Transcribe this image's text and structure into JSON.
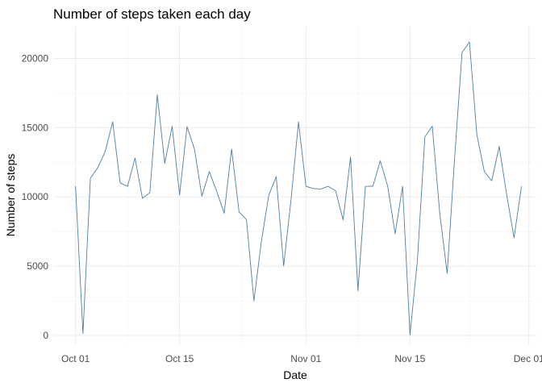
{
  "chart_data": {
    "type": "line",
    "title": "Number of steps taken each day",
    "xlabel": "Date",
    "ylabel": "Number of steps",
    "x_ticks": [
      {
        "date": "2012-10-01",
        "label": "Oct 01"
      },
      {
        "date": "2012-10-15",
        "label": "Oct 15"
      },
      {
        "date": "2012-11-01",
        "label": "Nov 01"
      },
      {
        "date": "2012-11-15",
        "label": "Nov 15"
      },
      {
        "date": "2012-12-01",
        "label": "Dec 01"
      }
    ],
    "y_ticks": [
      0,
      5000,
      10000,
      15000,
      20000
    ],
    "xlim": [
      "2012-09-28",
      "2012-12-02"
    ],
    "ylim": [
      -700,
      22300
    ],
    "grid": true,
    "line_color": "#4e7ea3",
    "series": [
      {
        "x": [
          "2012-10-01",
          "2012-10-02",
          "2012-10-03",
          "2012-10-04",
          "2012-10-05",
          "2012-10-06",
          "2012-10-07",
          "2012-10-08",
          "2012-10-09",
          "2012-10-10",
          "2012-10-11",
          "2012-10-12",
          "2012-10-13",
          "2012-10-14",
          "2012-10-15",
          "2012-10-16",
          "2012-10-17",
          "2012-10-18",
          "2012-10-19",
          "2012-10-20",
          "2012-10-21",
          "2012-10-22",
          "2012-10-23",
          "2012-10-24",
          "2012-10-25",
          "2012-10-26",
          "2012-10-27",
          "2012-10-28",
          "2012-10-29",
          "2012-10-30",
          "2012-10-31",
          "2012-11-01",
          "2012-11-02",
          "2012-11-03",
          "2012-11-04",
          "2012-11-05",
          "2012-11-06",
          "2012-11-07",
          "2012-11-08",
          "2012-11-09",
          "2012-11-10",
          "2012-11-11",
          "2012-11-12",
          "2012-11-13",
          "2012-11-14",
          "2012-11-15",
          "2012-11-16",
          "2012-11-17",
          "2012-11-18",
          "2012-11-19",
          "2012-11-20",
          "2012-11-21",
          "2012-11-22",
          "2012-11-23",
          "2012-11-24",
          "2012-11-25",
          "2012-11-26",
          "2012-11-27",
          "2012-11-28",
          "2012-11-29",
          "2012-11-30"
        ],
        "values": [
          10766,
          126,
          11352,
          12116,
          13294,
          15420,
          11015,
          10766,
          12811,
          9900,
          10304,
          17382,
          12426,
          15098,
          10139,
          15084,
          13452,
          10056,
          11829,
          10395,
          8821,
          13460,
          8918,
          8355,
          2492,
          6778,
          10119,
          11458,
          5018,
          9819,
          15414,
          10766,
          10600,
          10571,
          10766,
          10439,
          8334,
          12883,
          3219,
          10766,
          10766,
          12608,
          10765,
          7336,
          10766,
          41,
          5441,
          14339,
          15110,
          8841,
          4472,
          12787,
          20427,
          21194,
          14478,
          11834,
          11162,
          13646,
          10183,
          7047,
          10766
        ]
      }
    ]
  }
}
